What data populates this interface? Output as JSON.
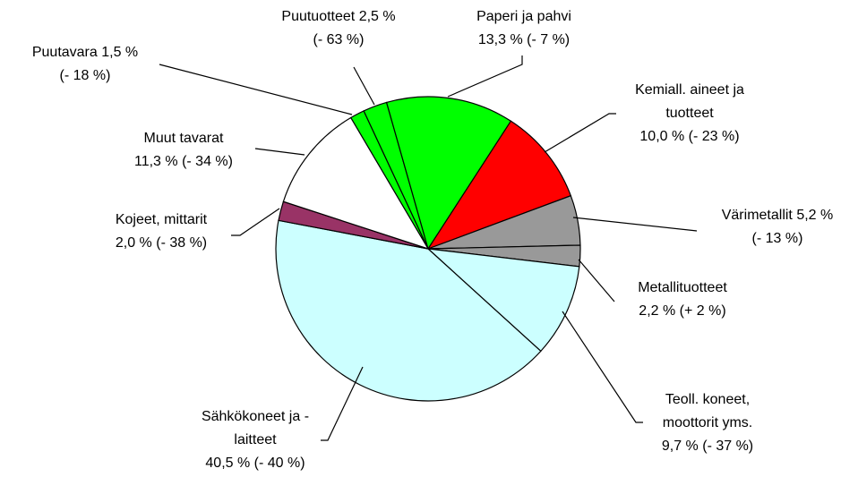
{
  "chart_data": {
    "type": "pie",
    "categories": [
      "Puutavara",
      "Puutuotteet",
      "Paperi ja pahvi",
      "Kemiall. aineet ja tuotteet",
      "Värimetallit",
      "Metallituotteet",
      "Teoll. koneet, moottorit yms.",
      "Sähkökoneet ja -laitteet",
      "Kojeet, mittarit",
      "Muut tavarat"
    ],
    "values": [
      1.5,
      2.5,
      13.3,
      10.0,
      5.2,
      2.2,
      9.7,
      40.5,
      2.0,
      11.3
    ],
    "value_labels": [
      "1,5 %",
      "2,5 %",
      "13,3 %",
      "10,0 %",
      "5,2 %",
      "2,2 %",
      "9,7 %",
      "40,5 %",
      "2,0 %",
      "11,3 %"
    ],
    "changes": [
      -18,
      -63,
      -7,
      -23,
      -13,
      2,
      -37,
      -40,
      -38,
      -34
    ],
    "change_labels": [
      "(- 18 %)",
      "(- 63 %)",
      "(- 7 %)",
      "(- 23 %)",
      "(- 13 %)",
      "(+ 2 %)",
      "(- 37 %)",
      "(- 40 %)",
      "(- 38 %)",
      "(- 34 %)"
    ],
    "colors": [
      "#00ff00",
      "#00ff00",
      "#00ff00",
      "#ff0000",
      "#999999",
      "#999999",
      "#ccffff",
      "#ccffff",
      "#993366",
      "#ffffff"
    ]
  }
}
